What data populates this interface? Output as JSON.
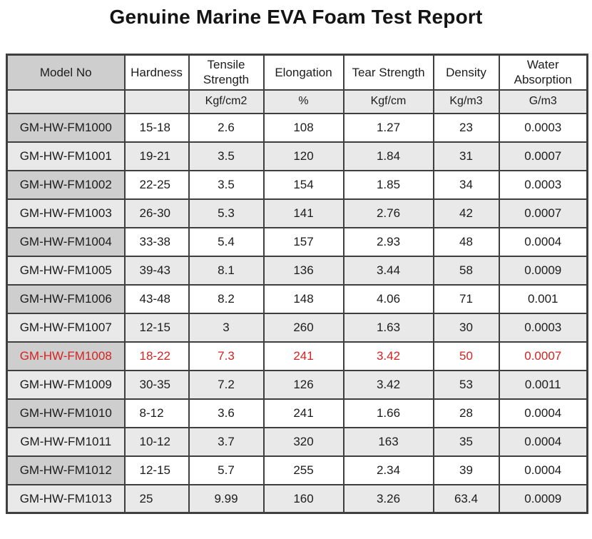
{
  "title": "Genuine Marine EVA Foam Test Report",
  "table": {
    "columns": [
      {
        "key": "model-no",
        "label": "Model No",
        "unit": ""
      },
      {
        "key": "hardness",
        "label": "Hardness",
        "unit": ""
      },
      {
        "key": "tensile-strength",
        "label": "Tensile Strength",
        "unit": "Kgf/cm2"
      },
      {
        "key": "elongation",
        "label": "Elongation",
        "unit": "%"
      },
      {
        "key": "tear-strength",
        "label": "Tear Strength",
        "unit": "Kgf/cm"
      },
      {
        "key": "density",
        "label": "Density",
        "unit": "Kg/m3"
      },
      {
        "key": "water-absorption",
        "label": "Water Absorption",
        "unit": "G/m3"
      }
    ],
    "rows": [
      {
        "model": "GM-HW-FM1000",
        "values": [
          "15-18",
          "2.6",
          "108",
          "1.27",
          "23",
          "0.0003"
        ],
        "highlight": false
      },
      {
        "model": "GM-HW-FM1001",
        "values": [
          "19-21",
          "3.5",
          "120",
          "1.84",
          "31",
          "0.0007"
        ],
        "highlight": false
      },
      {
        "model": "GM-HW-FM1002",
        "values": [
          "22-25",
          "3.5",
          "154",
          "1.85",
          "34",
          "0.0003"
        ],
        "highlight": false
      },
      {
        "model": "GM-HW-FM1003",
        "values": [
          "26-30",
          "5.3",
          "141",
          "2.76",
          "42",
          "0.0007"
        ],
        "highlight": false
      },
      {
        "model": "GM-HW-FM1004",
        "values": [
          "33-38",
          "5.4",
          "157",
          "2.93",
          "48",
          "0.0004"
        ],
        "highlight": false
      },
      {
        "model": "GM-HW-FM1005",
        "values": [
          "39-43",
          "8.1",
          "136",
          "3.44",
          "58",
          "0.0009"
        ],
        "highlight": false
      },
      {
        "model": "GM-HW-FM1006",
        "values": [
          "43-48",
          "8.2",
          "148",
          "4.06",
          "71",
          "0.001"
        ],
        "highlight": false
      },
      {
        "model": "GM-HW-FM1007",
        "values": [
          "12-15",
          "3",
          "260",
          "1.63",
          "30",
          "0.0003"
        ],
        "highlight": false
      },
      {
        "model": "GM-HW-FM1008",
        "values": [
          "18-22",
          "7.3",
          "241",
          "3.42",
          "50",
          "0.0007"
        ],
        "highlight": true
      },
      {
        "model": "GM-HW-FM1009",
        "values": [
          "30-35",
          "7.2",
          "126",
          "3.42",
          "53",
          "0.0011"
        ],
        "highlight": false
      },
      {
        "model": "GM-HW-FM1010",
        "values": [
          "8-12",
          "3.6",
          "241",
          "1.66",
          "28",
          "0.0004"
        ],
        "highlight": false
      },
      {
        "model": "GM-HW-FM1011",
        "values": [
          "10-12",
          "3.7",
          "320",
          "163",
          "35",
          "0.0004"
        ],
        "highlight": false
      },
      {
        "model": "GM-HW-FM1012",
        "values": [
          "12-15",
          "5.7",
          "255",
          "2.34",
          "39",
          "0.0004"
        ],
        "highlight": false
      },
      {
        "model": "GM-HW-FM1013",
        "values": [
          "25",
          "9.99",
          "160",
          "3.26",
          "63.4",
          "0.0009"
        ],
        "highlight": false
      }
    ]
  },
  "colors": {
    "highlight_text": "#d42322",
    "model_cell_bg": "#cecece",
    "alt_row_bg": "#e9e9e9",
    "border": "#3f3f3f"
  }
}
